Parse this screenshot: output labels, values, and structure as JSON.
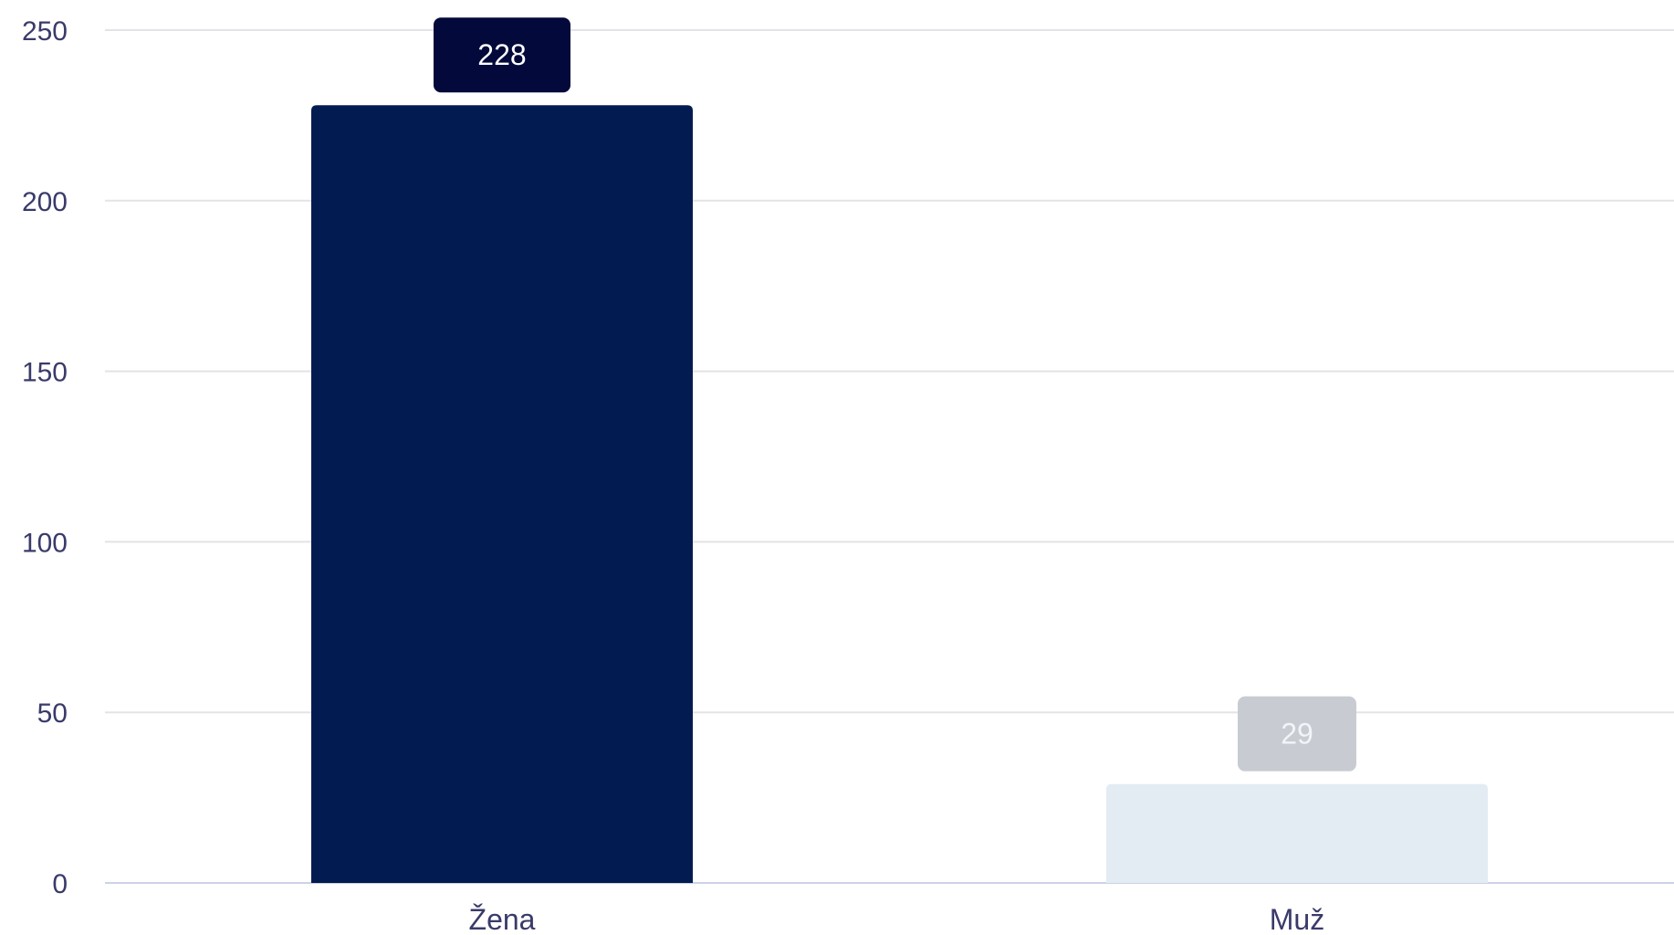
{
  "chart_data": {
    "type": "bar",
    "categories": [
      "Žena",
      "Muž"
    ],
    "values": [
      228,
      29
    ],
    "data_labels": [
      "228",
      "29"
    ],
    "ylim": [
      0,
      250
    ],
    "yticks": [
      0,
      50,
      100,
      150,
      200,
      250
    ],
    "ytick_labels": [
      "0",
      "50",
      "100",
      "150",
      "200",
      "250"
    ],
    "grid": true,
    "legend": "none",
    "colors": {
      "bars": [
        "#021b50",
        "#e3ebf3"
      ],
      "label_backgrounds": [
        "#03093a",
        "#c8ccd2"
      ],
      "label_text": [
        "#ffffff",
        "#f2f4f7"
      ],
      "gridline": "#e3e3e8",
      "baseline": "#cdd3e6",
      "axis_text": "#3a3a6a"
    }
  }
}
